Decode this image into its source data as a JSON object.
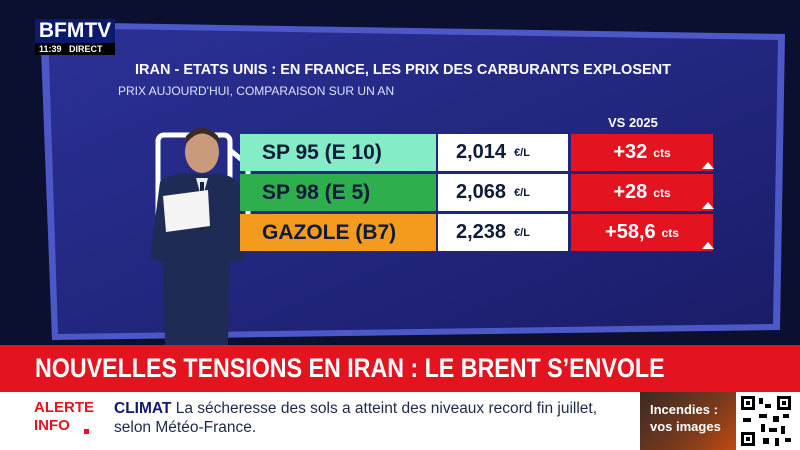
{
  "logo": {
    "brand": "BFMTV",
    "time": "11:39",
    "live": "DIRECT"
  },
  "header": {
    "title": "IRAN - ETATS UNIS : EN FRANCE, LES PRIX DES CARBURANTS EXPLOSENT",
    "subtitle": "PRIX AUJOURD'HUI, COMPARAISON SUR UN AN"
  },
  "table": {
    "change_header": "VS 2025",
    "rows": [
      {
        "fuel": "SP 95 (E 10)",
        "price": "2,014",
        "price_unit": "€/L",
        "change": "+32",
        "change_unit": "cts",
        "color": "#84ecc6"
      },
      {
        "fuel": "SP 98 (E 5)",
        "price": "2,068",
        "price_unit": "€/L",
        "change": "+28",
        "change_unit": "cts",
        "color": "#2fae4e"
      },
      {
        "fuel": "GAZOLE (B7)",
        "price": "2,238",
        "price_unit": "€/L",
        "change": "+58,6",
        "change_unit": "cts",
        "color": "#f49b1e"
      }
    ]
  },
  "headline": "NOUVELLES TENSIONS EN IRAN : LE BRENT S’ENVOLE",
  "ticker": {
    "alert_1": "ALERTE",
    "alert_2": "INFO",
    "topic": "CLIMAT",
    "text": "La sécheresse des sols a atteint des niveaux record fin juillet, selon Météo-France."
  },
  "promo": {
    "line_1": "Incendies :",
    "line_2": "vos images"
  }
}
